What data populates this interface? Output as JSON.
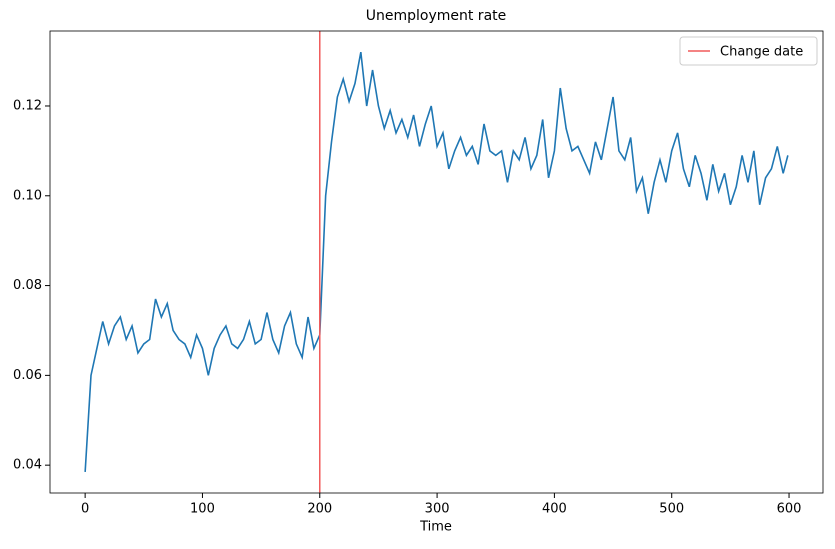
{
  "chart_data": {
    "type": "line",
    "title": "Unemployment rate",
    "x_label": "Time",
    "x": [
      0,
      5,
      10,
      15,
      20,
      25,
      30,
      35,
      40,
      45,
      50,
      55,
      60,
      65,
      70,
      75,
      80,
      85,
      90,
      95,
      100,
      105,
      110,
      115,
      120,
      125,
      130,
      135,
      140,
      145,
      150,
      155,
      160,
      165,
      170,
      175,
      180,
      185,
      190,
      195,
      200,
      205,
      210,
      215,
      220,
      225,
      230,
      235,
      240,
      245,
      250,
      255,
      260,
      265,
      270,
      275,
      280,
      285,
      290,
      295,
      300,
      305,
      310,
      315,
      320,
      325,
      330,
      335,
      340,
      345,
      350,
      355,
      360,
      365,
      370,
      375,
      380,
      385,
      390,
      395,
      400,
      405,
      410,
      415,
      420,
      425,
      430,
      435,
      440,
      445,
      450,
      455,
      460,
      465,
      470,
      475,
      480,
      485,
      490,
      495,
      500,
      505,
      510,
      515,
      520,
      525,
      530,
      535,
      540,
      545,
      550,
      555,
      560,
      565,
      570,
      575,
      580,
      585,
      590,
      595,
      599
    ],
    "series": [
      {
        "name": "Unemployment rate",
        "color": "#1f77b4",
        "values": [
          0.0385,
          0.06,
          0.066,
          0.072,
          0.067,
          0.071,
          0.073,
          0.068,
          0.071,
          0.065,
          0.067,
          0.068,
          0.077,
          0.073,
          0.076,
          0.07,
          0.068,
          0.067,
          0.064,
          0.069,
          0.066,
          0.06,
          0.066,
          0.069,
          0.071,
          0.067,
          0.066,
          0.068,
          0.072,
          0.067,
          0.068,
          0.074,
          0.068,
          0.065,
          0.071,
          0.074,
          0.067,
          0.064,
          0.073,
          0.066,
          0.069,
          0.1,
          0.112,
          0.122,
          0.126,
          0.121,
          0.125,
          0.132,
          0.12,
          0.128,
          0.12,
          0.115,
          0.119,
          0.114,
          0.117,
          0.113,
          0.118,
          0.111,
          0.116,
          0.12,
          0.111,
          0.114,
          0.106,
          0.11,
          0.113,
          0.109,
          0.111,
          0.107,
          0.116,
          0.11,
          0.109,
          0.11,
          0.103,
          0.11,
          0.108,
          0.113,
          0.106,
          0.109,
          0.117,
          0.104,
          0.11,
          0.124,
          0.115,
          0.11,
          0.111,
          0.108,
          0.105,
          0.112,
          0.108,
          0.115,
          0.122,
          0.11,
          0.108,
          0.113,
          0.101,
          0.104,
          0.096,
          0.103,
          0.108,
          0.103,
          0.11,
          0.114,
          0.106,
          0.102,
          0.109,
          0.105,
          0.099,
          0.107,
          0.101,
          0.105,
          0.098,
          0.102,
          0.109,
          0.103,
          0.11,
          0.098,
          0.104,
          0.106,
          0.111,
          0.105,
          0.109
        ]
      }
    ],
    "vline": {
      "x": 200,
      "name": "Change date",
      "color": "#f05a5a"
    },
    "legend": "upper right",
    "xlim": [
      -29.95,
      628.95
    ],
    "xticks": [
      0,
      100,
      200,
      300,
      400,
      500,
      600
    ],
    "ylim": [
      0.0338,
      0.1367
    ],
    "yticks": [
      0.04,
      0.06,
      0.08,
      {
        "value": 0.1,
        "label": "0.10"
      },
      0.12
    ]
  }
}
